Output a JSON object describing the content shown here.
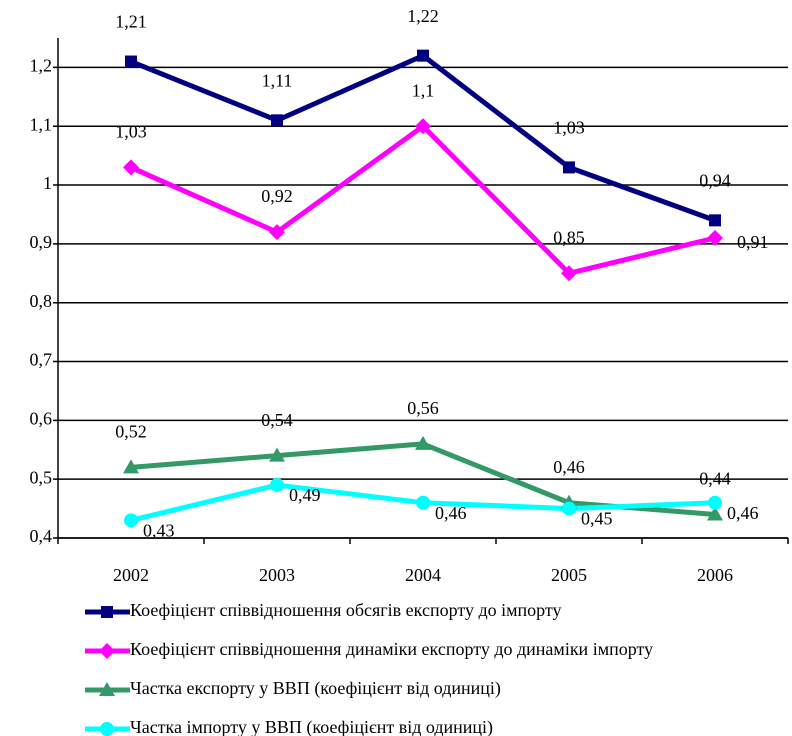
{
  "chart_data": {
    "type": "line",
    "categories": [
      "2002",
      "2003",
      "2004",
      "2005",
      "2006"
    ],
    "ylim": [
      0.4,
      1.25
    ],
    "yticks": [
      {
        "value": 0.4,
        "label": "0,4"
      },
      {
        "value": 0.5,
        "label": "0,5"
      },
      {
        "value": 0.6,
        "label": "0,6"
      },
      {
        "value": 0.7,
        "label": "0,7"
      },
      {
        "value": 0.8,
        "label": "0,8"
      },
      {
        "value": 0.9,
        "label": "0,9"
      },
      {
        "value": 1,
        "label": "1"
      },
      {
        "value": 1.1,
        "label": "1,1"
      },
      {
        "value": 1.2,
        "label": "1,2"
      }
    ],
    "grid": true,
    "legend": "bottom",
    "series": [
      {
        "name": "Коефіцієнт співвідношення обсягів експорту до імпорту",
        "color": "#000080",
        "marker": "square",
        "values": [
          1.21,
          1.11,
          1.22,
          1.03,
          0.94
        ],
        "value_labels": [
          "1,21",
          "1,11",
          "1,22",
          "1,03",
          "0,94"
        ]
      },
      {
        "name": "Коефіцієнт співвідношення динаміки експорту до динаміки імпорту",
        "color": "#FF00FF",
        "marker": "diamond",
        "values": [
          1.03,
          0.92,
          1.1,
          0.85,
          0.91
        ],
        "value_labels": [
          "1,03",
          "0,92",
          "1,1",
          "0,85",
          "0,91"
        ]
      },
      {
        "name": "Частка експорту у ВВП (коефіцієнт від одиниці)",
        "color": "#339966",
        "marker": "triangle",
        "values": [
          0.52,
          0.54,
          0.56,
          0.46,
          0.44
        ],
        "value_labels": [
          "0,52",
          "0,54",
          "0,56",
          "0,46",
          "0,44"
        ]
      },
      {
        "name": "Частка імпорту у ВВП  (коефіцієнт від одиниці)",
        "color": "#00FFFF",
        "marker": "circle",
        "values": [
          0.43,
          0.49,
          0.46,
          0.45,
          0.46
        ],
        "value_labels": [
          "0,43",
          "0,49",
          "0,46",
          "0,45",
          "0,46"
        ]
      }
    ]
  }
}
